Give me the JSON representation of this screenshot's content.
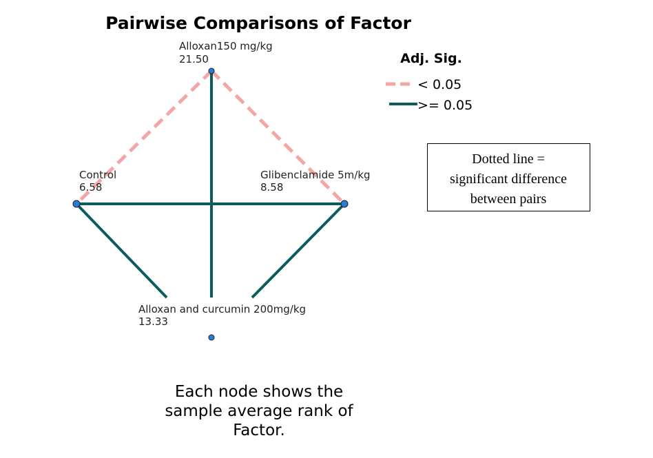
{
  "title": "Pairwise Comparisons of Factor",
  "nodes": [
    {
      "label": "Alloxan150 mg/kg",
      "rank": "21.50"
    },
    {
      "label": "Control",
      "rank": "6.58"
    },
    {
      "label": "Glibenclamide 5m/kg",
      "rank": "8.58"
    },
    {
      "label": "Alloxan and curcumin 200mg/kg",
      "rank": "13.33"
    }
  ],
  "legend": {
    "title": "Adj. Sig.",
    "items": [
      "< 0.05",
      ">= 0.05"
    ]
  },
  "note": [
    "Dotted line =",
    "significant difference",
    "between pairs"
  ],
  "footer": [
    "Each node shows the",
    "sample average rank of",
    "Factor."
  ]
}
